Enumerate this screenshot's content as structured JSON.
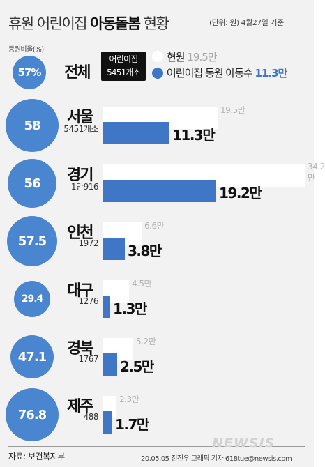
{
  "header": {
    "title_part1": "휴원 어린이집 ",
    "title_part2": "아동돌봄",
    "title_part3": " 현황",
    "unit_note": "(단위: 원) 4월27일 기준"
  },
  "ratio_label": "등원비율(%)",
  "legend": {
    "box_line1": "어린이집",
    "box_line2": "5451개소",
    "current_label": "현원",
    "current_total": "19.5만",
    "enrolled_label": "어린이집 동원 아동수",
    "enrolled_total": "11.3만"
  },
  "total_row": {
    "name": "전체",
    "ratio": "57%"
  },
  "chart_data": {
    "type": "bar",
    "title": "휴원 어린이집 아동돌봄 현황",
    "unit": "원",
    "xlim": [
      0,
      34.2
    ],
    "series_names": [
      "현원",
      "어린이집 동원 아동수"
    ],
    "rows": [
      {
        "name": "서울",
        "count": "5451개소",
        "ratio": "58",
        "current": 19.5,
        "current_label": "19.5만",
        "enrolled": 11.3,
        "enrolled_label": "11.3만"
      },
      {
        "name": "경기",
        "count": "1만916",
        "ratio": "56",
        "current": 34.2,
        "current_label": "34.2만",
        "enrolled": 19.2,
        "enrolled_label": "19.2만"
      },
      {
        "name": "인천",
        "count": "1972",
        "ratio": "57.5",
        "current": 6.6,
        "current_label": "6.6만",
        "enrolled": 3.8,
        "enrolled_label": "3.8만"
      },
      {
        "name": "대구",
        "count": "1276",
        "ratio": "29.4",
        "current": 4.5,
        "current_label": "4.5만",
        "enrolled": 1.3,
        "enrolled_label": "1.3만"
      },
      {
        "name": "경북",
        "count": "1767",
        "ratio": "47.1",
        "current": 5.2,
        "current_label": "5.2만",
        "enrolled": 2.5,
        "enrolled_label": "2.5만"
      },
      {
        "name": "제주",
        "count": "488",
        "ratio": "76.8",
        "current": 2.3,
        "current_label": "2.3만",
        "enrolled": 1.7,
        "enrolled_label": "1.7만"
      }
    ]
  },
  "colors": {
    "enrolled": "#3f77c6",
    "circle": "#4a86cf",
    "current": "#ffffff",
    "background": "#f2f2f2"
  },
  "footer": {
    "source": "자료: 보건복지부",
    "credit": "20.05.05 전진우 그래픽 기자 618tue@newsis.com",
    "watermark": "NEWSIS"
  }
}
